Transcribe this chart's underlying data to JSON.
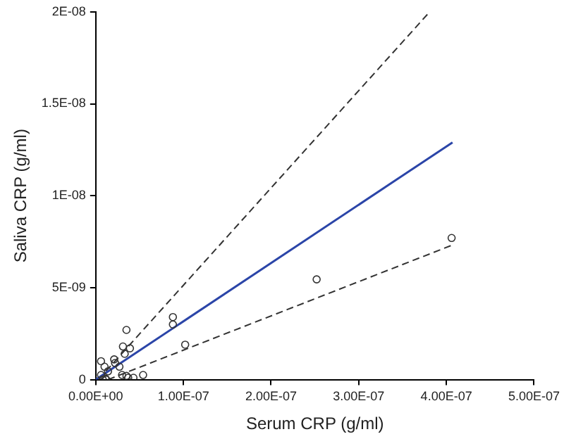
{
  "chart_data": {
    "type": "scatter",
    "xlabel": "Serum CRP (g/ml)",
    "ylabel": "Saliva CRP (g/ml)",
    "xlim": [
      0,
      5e-07
    ],
    "ylim": [
      0,
      2e-08
    ],
    "xticks": [
      {
        "value": 0,
        "label": "0.00E+00"
      },
      {
        "value": 1e-07,
        "label": "1.00E-07"
      },
      {
        "value": 2e-07,
        "label": "2.00E-07"
      },
      {
        "value": 3e-07,
        "label": "3.00E-07"
      },
      {
        "value": 4e-07,
        "label": "4.00E-07"
      },
      {
        "value": 5e-07,
        "label": "5.00E-07"
      }
    ],
    "yticks": [
      {
        "value": 0,
        "label": "0"
      },
      {
        "value": 5e-09,
        "label": "5E-09"
      },
      {
        "value": 1e-08,
        "label": "1E-08"
      },
      {
        "value": 1.5e-08,
        "label": "1.5E-08"
      },
      {
        "value": 2e-08,
        "label": "2E-08"
      }
    ],
    "grid": false,
    "legend": false,
    "marker": "circle",
    "series": [
      {
        "color": "#333333",
        "x": [
          6e-09,
          6e-09,
          1e-08,
          1.2e-08,
          1.3e-08,
          1.4e-08,
          2.1e-08,
          2.2e-08,
          2.7e-08,
          3e-08,
          3.1e-08,
          3.3e-08,
          3.5e-08,
          3.5e-08,
          3.7e-08,
          3.9e-08,
          4.3e-08,
          5.4e-08,
          8.8e-08,
          8.8e-08,
          1.02e-07,
          2.52e-07,
          4.06e-07,
          8e-09,
          1.1e-08
        ],
        "values": [
          1e-09,
          2.5e-10,
          7e-10,
          0,
          null,
          4.5e-10,
          1.1e-09,
          9e-10,
          7e-10,
          2.5e-10,
          1.8e-09,
          1.4e-09,
          2.7e-09,
          2e-10,
          1e-10,
          1.7e-09,
          1e-10,
          2.5e-10,
          3.4e-09,
          3e-09,
          1.9e-09,
          5.45e-09,
          7.7e-09,
          0,
          5e-11
        ]
      },
      {
        "type": "line",
        "color": "#2b45a8",
        "line_style": "solid",
        "marker": "none",
        "x": [
          0,
          4.07e-07
        ],
        "values": [
          0,
          1.29e-08
        ]
      },
      {
        "type": "line",
        "color": "#333333",
        "line_style": "dashed",
        "marker": "none",
        "x": [
          3e-09,
          3.81e-07
        ],
        "values": [
          0,
          2e-08
        ]
      },
      {
        "type": "line",
        "color": "#333333",
        "line_style": "dashed",
        "marker": "none",
        "x": [
          1.4e-08,
          4.06e-07
        ],
        "values": [
          0,
          7.3e-09
        ]
      }
    ]
  }
}
